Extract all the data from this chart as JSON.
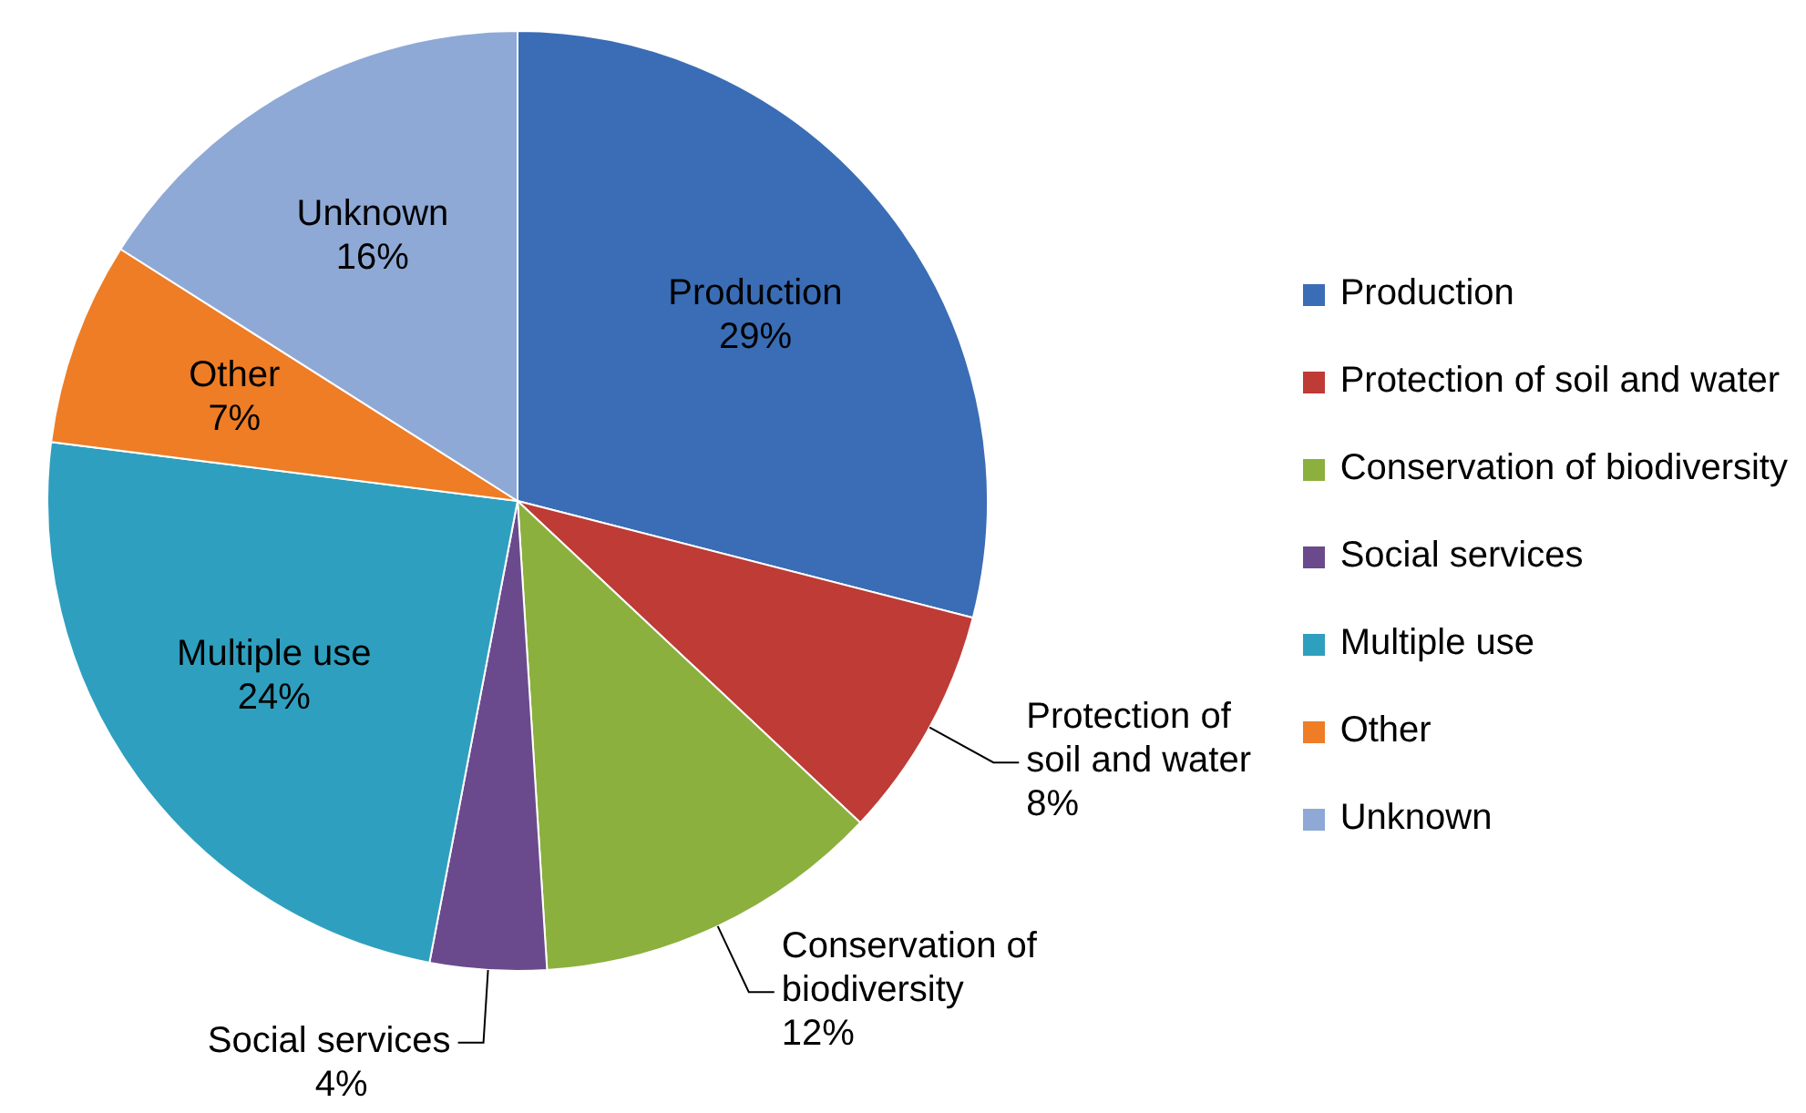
{
  "chart_data": {
    "type": "pie",
    "categories": [
      "Production",
      "Protection of soil and water",
      "Conservation of biodiversity",
      "Social services",
      "Multiple use",
      "Other",
      "Unknown"
    ],
    "values": [
      29,
      8,
      12,
      4,
      24,
      7,
      16
    ],
    "value_labels": [
      "29%",
      "8%",
      "12%",
      "4%",
      "24%",
      "7%",
      "16%"
    ],
    "colors": [
      "#3a6db5",
      "#be3b36",
      "#8bb03e",
      "#6a4a8c",
      "#2f9fbf",
      "#ee7d26",
      "#8ea9d6"
    ],
    "legend": "right"
  }
}
